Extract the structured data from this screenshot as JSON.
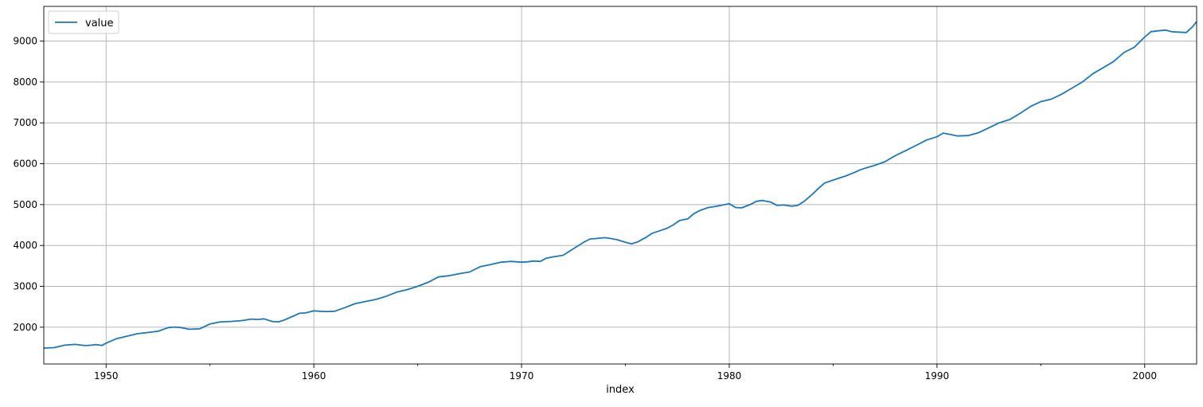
{
  "chart_data": {
    "type": "line",
    "title": "",
    "xlabel": "index",
    "ylabel": "",
    "xlim": [
      1947.0,
      2002.5
    ],
    "ylim": [
      1100,
      9850
    ],
    "x_ticks": [
      1950,
      1960,
      1970,
      1980,
      1990,
      2000
    ],
    "x_tick_labels": [
      "1950",
      "1960",
      "1970",
      "1980",
      "1990",
      "2000"
    ],
    "y_ticks": [
      2000,
      3000,
      4000,
      5000,
      6000,
      7000,
      8000,
      9000
    ],
    "y_tick_labels": [
      "2000",
      "3000",
      "4000",
      "5000",
      "6000",
      "7000",
      "8000",
      "9000"
    ],
    "grid": true,
    "legend": {
      "placement": "top-left",
      "entries": [
        "value"
      ]
    },
    "series": [
      {
        "name": "value",
        "color": "#1f77b4",
        "x": [
          1947.0,
          1947.5,
          1948.0,
          1948.5,
          1949.0,
          1949.3,
          1949.5,
          1949.8,
          1950.0,
          1950.5,
          1951.0,
          1951.5,
          1952.0,
          1952.5,
          1953.0,
          1953.3,
          1953.6,
          1954.0,
          1954.5,
          1955.0,
          1955.5,
          1956.0,
          1956.5,
          1957.0,
          1957.3,
          1957.6,
          1958.0,
          1958.3,
          1958.6,
          1959.0,
          1959.3,
          1959.6,
          1960.0,
          1960.3,
          1960.6,
          1961.0,
          1961.5,
          1962.0,
          1962.5,
          1963.0,
          1963.5,
          1964.0,
          1964.5,
          1965.0,
          1965.5,
          1966.0,
          1966.5,
          1967.0,
          1967.5,
          1968.0,
          1968.5,
          1969.0,
          1969.5,
          1970.0,
          1970.3,
          1970.6,
          1970.9,
          1971.2,
          1971.5,
          1972.0,
          1972.5,
          1973.0,
          1973.3,
          1973.6,
          1974.0,
          1974.3,
          1974.6,
          1975.0,
          1975.3,
          1975.6,
          1976.0,
          1976.3,
          1976.6,
          1977.0,
          1977.3,
          1977.6,
          1978.0,
          1978.3,
          1978.6,
          1979.0,
          1979.3,
          1979.6,
          1980.0,
          1980.3,
          1980.6,
          1981.0,
          1981.3,
          1981.6,
          1982.0,
          1982.3,
          1982.6,
          1983.0,
          1983.3,
          1983.6,
          1984.0,
          1984.3,
          1984.6,
          1985.0,
          1985.3,
          1985.6,
          1986.0,
          1986.3,
          1986.6,
          1987.0,
          1987.5,
          1988.0,
          1988.5,
          1989.0,
          1989.5,
          1990.0,
          1990.3,
          1990.6,
          1991.0,
          1991.5,
          1992.0,
          1992.5,
          1993.0,
          1993.5,
          1994.0,
          1994.5,
          1995.0,
          1995.5,
          1996.0,
          1996.5,
          1997.0,
          1997.5,
          1998.0,
          1998.5,
          1999.0,
          1999.5,
          2000.0,
          2000.3,
          2000.6,
          2001.0,
          2001.3,
          2001.6,
          2002.0,
          2002.3,
          2002.5
        ],
        "y": [
          1490,
          1500,
          1560,
          1580,
          1550,
          1560,
          1575,
          1555,
          1610,
          1720,
          1780,
          1840,
          1870,
          1900,
          1990,
          2005,
          1990,
          1950,
          1960,
          2080,
          2130,
          2140,
          2160,
          2200,
          2190,
          2205,
          2140,
          2130,
          2180,
          2270,
          2340,
          2350,
          2400,
          2390,
          2385,
          2390,
          2480,
          2580,
          2630,
          2680,
          2760,
          2860,
          2920,
          3000,
          3100,
          3230,
          3260,
          3310,
          3350,
          3480,
          3530,
          3590,
          3610,
          3590,
          3600,
          3620,
          3610,
          3690,
          3720,
          3760,
          3920,
          4080,
          4160,
          4170,
          4190,
          4170,
          4140,
          4080,
          4040,
          4090,
          4200,
          4300,
          4350,
          4420,
          4500,
          4610,
          4650,
          4780,
          4860,
          4930,
          4950,
          4980,
          5020,
          4930,
          4920,
          5000,
          5080,
          5100,
          5060,
          4980,
          4990,
          4960,
          4980,
          5080,
          5250,
          5400,
          5530,
          5600,
          5650,
          5700,
          5780,
          5850,
          5900,
          5960,
          6050,
          6200,
          6320,
          6450,
          6580,
          6660,
          6750,
          6720,
          6680,
          6690,
          6760,
          6880,
          7000,
          7080,
          7230,
          7400,
          7520,
          7580,
          7700,
          7850,
          8000,
          8200,
          8350,
          8500,
          8720,
          8850,
          9100,
          9230,
          9250,
          9270,
          9230,
          9220,
          9210,
          9350,
          9480
        ]
      }
    ]
  }
}
